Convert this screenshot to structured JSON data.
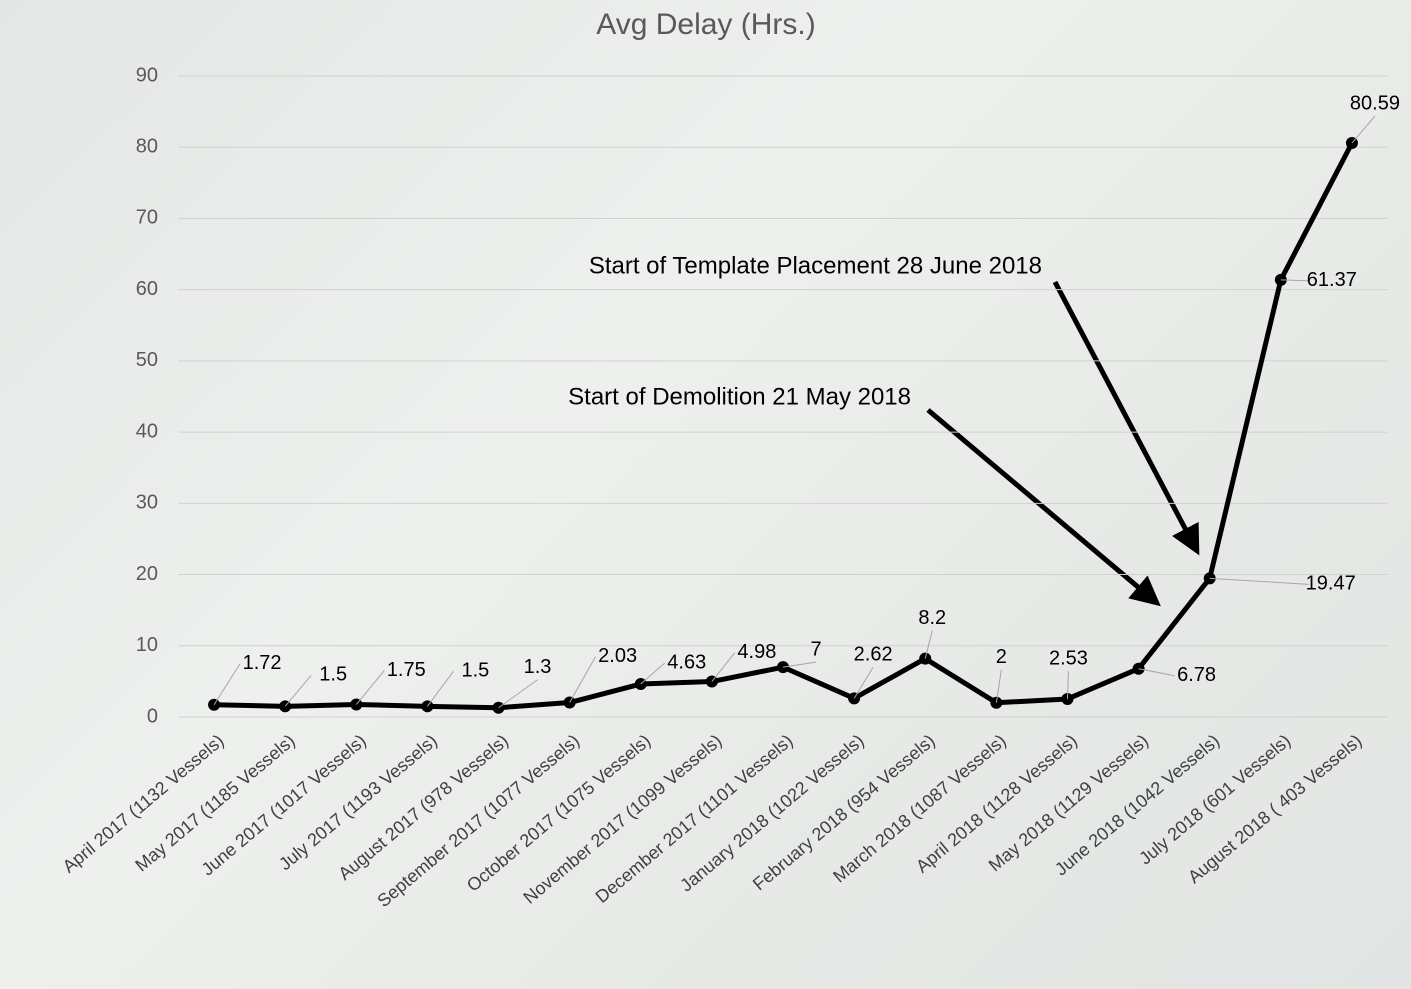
{
  "chart_data": {
    "type": "line",
    "title": "Avg Delay (Hrs.)",
    "categories": [
      "April 2017 (1132 Vessels)",
      "May 2017 (1185 Vessels)",
      "June 2017 (1017 Vessels)",
      "July 2017 (1193 Vessels)",
      "August 2017 (978 Vessels)",
      "September 2017 (1077 Vessels)",
      "October 2017 (1075 Vessels)",
      "November 2017 (1099 Vessels)",
      "December 2017 (1101 Vessels)",
      "January 2018 (1022 Vessels)",
      "February 2018 (954 Vessels)",
      "March 2018 (1087 Vessels)",
      "April 2018 (1128 Vessels)",
      "May 2018 (1129 Vessels)",
      "June 2018 (1042 Vessels)",
      "July 2018 (601 Vessels)",
      "August 2018 ( 403 Vessels)"
    ],
    "values": [
      1.72,
      1.5,
      1.75,
      1.5,
      1.3,
      2.03,
      4.63,
      4.98,
      7,
      2.62,
      8.2,
      2,
      2.53,
      6.78,
      19.47,
      61.37,
      80.59
    ],
    "color": "#000000",
    "ylim": [
      0,
      90
    ],
    "yticks": [
      0,
      10,
      20,
      30,
      40,
      50,
      60,
      70,
      80,
      90
    ],
    "grid": true,
    "annotations": [
      {
        "text": "Start of Template Placement 28 June 2018"
      },
      {
        "text": "Start of Demolition 21 May 2018"
      }
    ]
  }
}
